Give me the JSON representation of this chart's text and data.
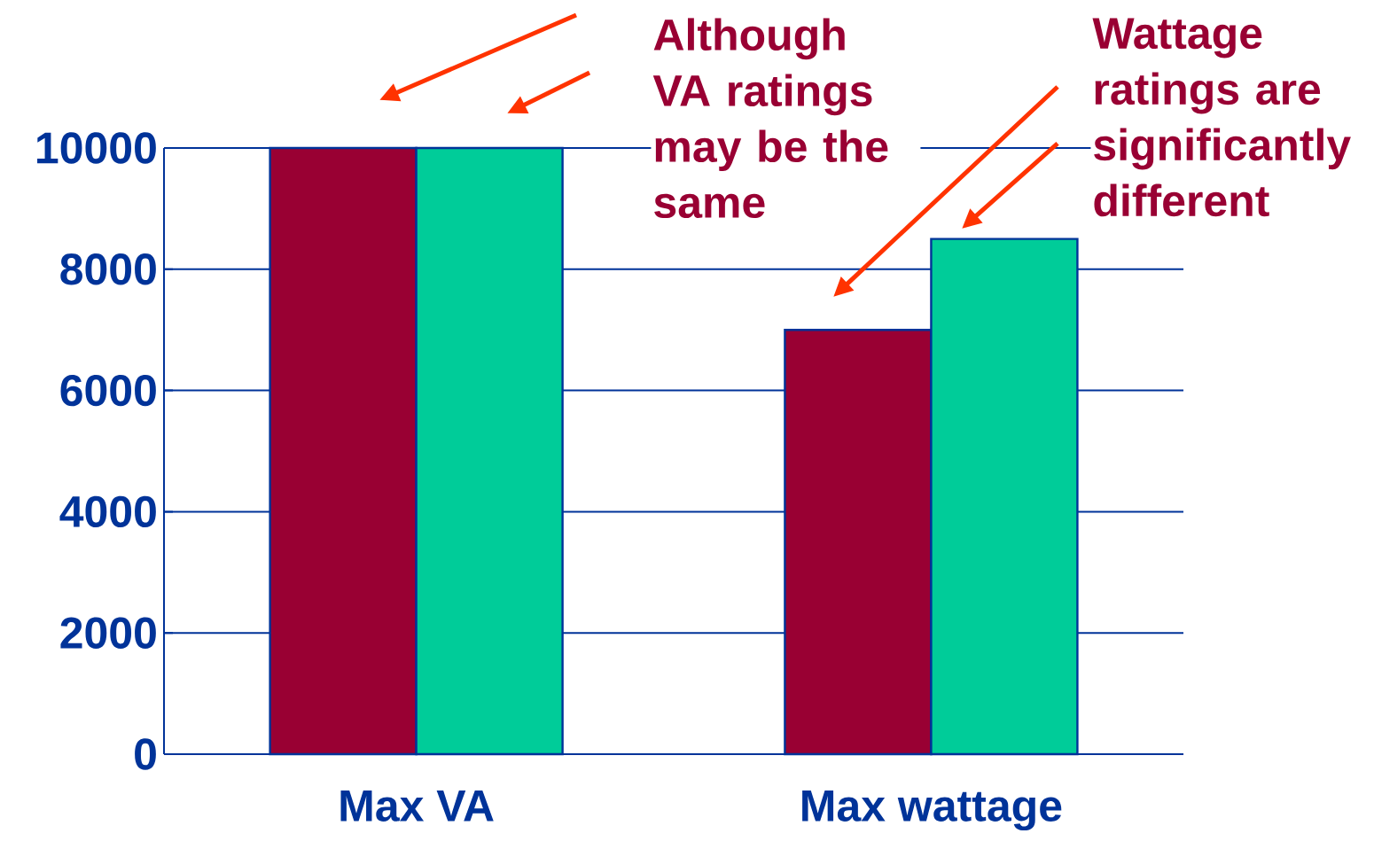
{
  "chart_data": {
    "type": "bar",
    "categories": [
      "Max VA",
      "Max wattage"
    ],
    "series": [
      {
        "color": "#990033",
        "values": [
          10000,
          7000
        ]
      },
      {
        "color": "#00cc99",
        "values": [
          10000,
          8500
        ]
      }
    ],
    "ylim": [
      0,
      10000
    ],
    "yticks": [
      0,
      2000,
      4000,
      6000,
      8000,
      10000
    ],
    "grid": "y",
    "annotations": [
      "Although VA ratings may be the same",
      "Wattage ratings are significantly different"
    ]
  }
}
